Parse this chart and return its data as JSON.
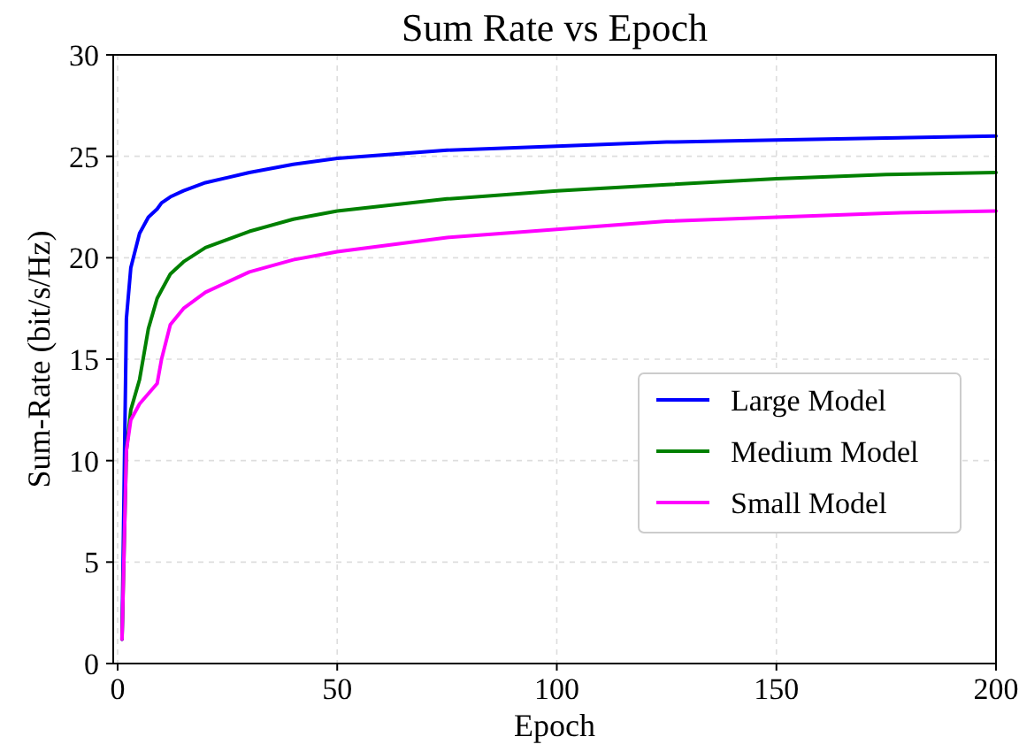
{
  "chart_data": {
    "type": "line",
    "title": "Sum Rate vs Epoch",
    "xlabel": "Epoch",
    "ylabel": "Sum-Rate (bit/s/Hz)",
    "xlim": [
      -1,
      200
    ],
    "ylim": [
      0,
      30
    ],
    "xticks": [
      0,
      50,
      100,
      150,
      200
    ],
    "yticks": [
      0,
      5,
      10,
      15,
      20,
      25,
      30
    ],
    "x": [
      1,
      2,
      3,
      5,
      7,
      9,
      10,
      12,
      15,
      20,
      30,
      40,
      50,
      75,
      100,
      125,
      150,
      175,
      200
    ],
    "series": [
      {
        "name": "Large Model",
        "color": "#0000ff",
        "values": [
          1.2,
          17,
          19.5,
          21.2,
          22,
          22.4,
          22.7,
          23,
          23.3,
          23.7,
          24.2,
          24.6,
          24.9,
          25.3,
          25.5,
          25.7,
          25.8,
          25.9,
          26
        ]
      },
      {
        "name": "Medium Model",
        "color": "#008000",
        "values": [
          1.2,
          10.5,
          12.5,
          14,
          16.5,
          18,
          18.4,
          19.2,
          19.8,
          20.5,
          21.3,
          21.9,
          22.3,
          22.9,
          23.3,
          23.6,
          23.9,
          24.1,
          24.2
        ]
      },
      {
        "name": "Small Model",
        "color": "#ff00ff",
        "values": [
          1.2,
          10.5,
          12,
          12.8,
          13.3,
          13.8,
          15,
          16.7,
          17.5,
          18.3,
          19.3,
          19.9,
          20.3,
          21,
          21.4,
          21.8,
          22,
          22.2,
          22.3
        ]
      }
    ],
    "grid": true,
    "legend": "right",
    "line_style": "solid",
    "marker": "none"
  }
}
